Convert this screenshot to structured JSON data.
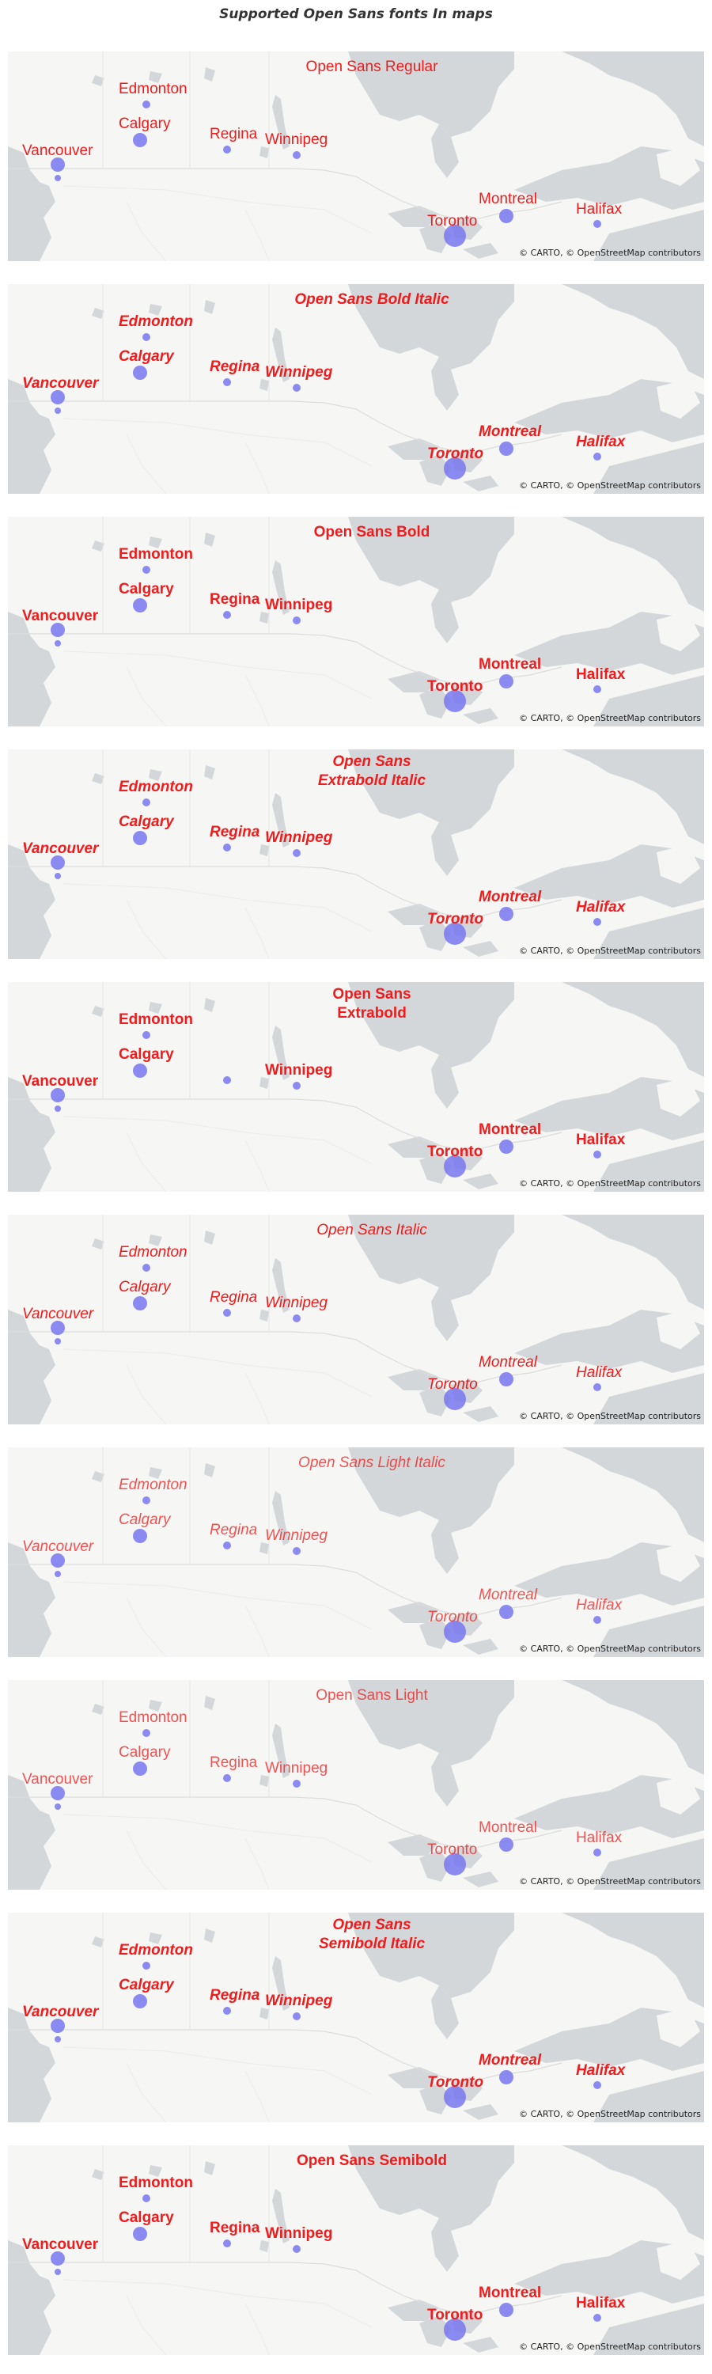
{
  "page_title": "Supported Open Sans fonts  In maps",
  "attribution": "© CARTO, © OpenStreetMap contributors",
  "colors": {
    "label": "#ee1c1c",
    "marker": "#7777ee",
    "land": "#f6f6f4",
    "water": "#d4d7da"
  },
  "cities": [
    {
      "name": "Vancouver",
      "size": "large"
    },
    {
      "name": "Edmonton",
      "size": "small"
    },
    {
      "name": "Calgary",
      "size": "large"
    },
    {
      "name": "Regina",
      "size": "small"
    },
    {
      "name": "Winnipeg",
      "size": "small"
    },
    {
      "name": "Toronto",
      "size": "xlarge"
    },
    {
      "name": "Montreal",
      "size": "large"
    },
    {
      "name": "Halifax",
      "size": "small"
    }
  ],
  "panels": [
    {
      "title": "Open Sans Regular",
      "style": "regular",
      "labels": [
        "Vancouver",
        "Edmonton",
        "Calgary",
        "Regina",
        "Winnipeg",
        "Toronto",
        "Montreal",
        "Halifax"
      ]
    },
    {
      "title": "Open Sans Bold Italic",
      "style": "bold-italic",
      "labels": [
        "Vancouver",
        "Edmonton",
        "Calgary",
        "Regina",
        "Winnipeg",
        "Toronto",
        "Montreal",
        "Halifax"
      ]
    },
    {
      "title": "Open Sans Bold",
      "style": "bold",
      "labels": [
        "Vancouver",
        "Edmonton",
        "Calgary",
        "Regina",
        "Winnipeg",
        "Toronto",
        "Montreal",
        "Halifax"
      ]
    },
    {
      "title": "Open Sans\nExtrabold Italic",
      "style": "extrabold-italic",
      "labels": [
        "Vancouver",
        "Edmonton",
        "Calgary",
        "Regina",
        "Winnipeg",
        "Toronto",
        "Montreal",
        "Halifax"
      ]
    },
    {
      "title": "Open Sans\nExtrabold",
      "style": "extrabold",
      "labels": [
        "Vancouver",
        "Edmonton",
        "Calgary",
        "",
        "Winnipeg",
        "Toronto",
        "Montreal",
        "Halifax"
      ]
    },
    {
      "title": "Open Sans Italic",
      "style": "italic",
      "labels": [
        "Vancouver",
        "Edmonton",
        "Calgary",
        "Regina",
        "Winnipeg",
        "Toronto",
        "Montreal",
        "Halifax"
      ]
    },
    {
      "title": "Open Sans Light Italic",
      "style": "light-italic",
      "labels": [
        "Vancouver",
        "Edmonton",
        "Calgary",
        "Regina",
        "Winnipeg",
        "Toronto",
        "Montreal",
        "Halifax"
      ]
    },
    {
      "title": "Open Sans Light",
      "style": "light",
      "labels": [
        "Vancouver",
        "Edmonton",
        "Calgary",
        "Regina",
        "Winnipeg",
        "Toronto",
        "Montreal",
        "Halifax"
      ]
    },
    {
      "title": "Open Sans\nSemibold Italic",
      "style": "semibold-italic",
      "labels": [
        "Vancouver",
        "Edmonton",
        "Calgary",
        "Regina",
        "Winnipeg",
        "Toronto",
        "Montreal",
        "Halifax"
      ]
    },
    {
      "title": "Open Sans Semibold",
      "style": "semibold",
      "labels": [
        "Vancouver",
        "Edmonton",
        "Calgary",
        "Regina",
        "Winnipeg",
        "Toronto",
        "Montreal",
        "Halifax"
      ]
    }
  ]
}
